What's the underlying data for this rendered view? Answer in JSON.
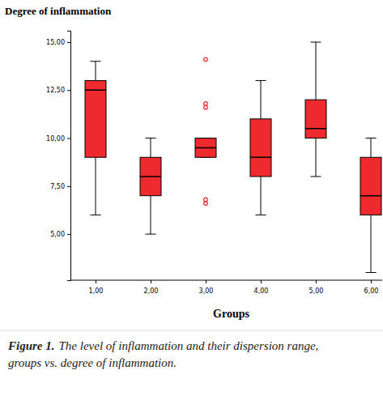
{
  "chart_data": {
    "type": "box",
    "title": "Degree of inflammation",
    "x_label": "Groups",
    "caption_label": "Figure 1.",
    "caption": [
      "The level of inflammation and their dispersion range,",
      "groups vs. degree of inflammation."
    ],
    "categories": [
      "1,00",
      "2,00",
      "3,00",
      "4,00",
      "5,00",
      "6,00"
    ],
    "values": [
      {
        "min": 6,
        "q1": 9,
        "median": 12.5,
        "q3": 13,
        "max": 14,
        "outliers": []
      },
      {
        "min": 5,
        "q1": 7,
        "median": 8,
        "q3": 9,
        "max": 10,
        "outliers": []
      },
      {
        "min": 9,
        "q1": 9,
        "median": 9.5,
        "q3": 10,
        "max": 10,
        "outliers": [
          14.1,
          11.8,
          11.6,
          6.8,
          6.6
        ]
      },
      {
        "min": 6,
        "q1": 8,
        "median": 9,
        "q3": 11,
        "max": 13,
        "outliers": []
      },
      {
        "min": 8,
        "q1": 10,
        "median": 10.5,
        "q3": 12,
        "max": 15,
        "outliers": []
      },
      {
        "min": 3,
        "q1": 6,
        "median": 7,
        "q3": 9,
        "max": 10,
        "outliers": []
      }
    ],
    "color": "#ee2a2e",
    "ylim": [
      2.6,
      15.6
    ],
    "yticks": [
      {
        "value": 5,
        "label": "5,00"
      },
      {
        "value": 7.5,
        "label": "7,50"
      },
      {
        "value": 10,
        "label": "10,00"
      },
      {
        "value": 12.5,
        "label": "12,50"
      },
      {
        "value": 15,
        "label": "15,00"
      }
    ],
    "grid": false
  }
}
